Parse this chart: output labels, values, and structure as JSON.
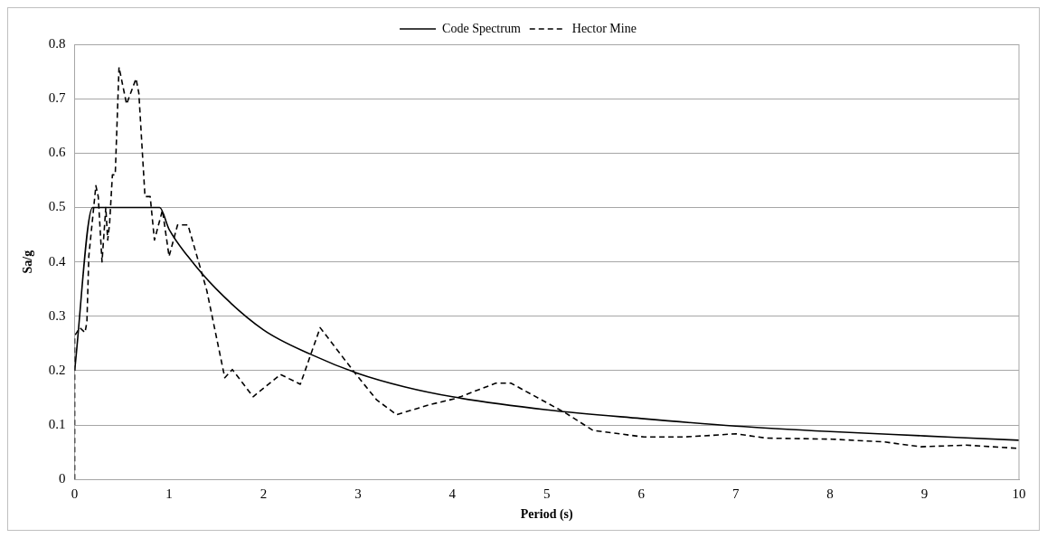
{
  "chart_data": {
    "type": "line",
    "xlabel": "Period (s)",
    "ylabel": "Sa/g",
    "xlim": [
      0,
      10
    ],
    "xticks": [
      0,
      1,
      2,
      3,
      4,
      5,
      6,
      7,
      8,
      9,
      10
    ],
    "ylim": [
      0,
      0.8
    ],
    "yticks": [
      0,
      0.1,
      0.2,
      0.3,
      0.4,
      0.5,
      0.6,
      0.7,
      0.8
    ],
    "grid": "y",
    "legend": "top",
    "marker": "none",
    "series": [
      {
        "name": "Code Spectrum",
        "color": "#000000",
        "line_style": "solid",
        "x": [
          0,
          0.19,
          0.9,
          1,
          1.2,
          1.5,
          2,
          2.5,
          3,
          3.5,
          4,
          5,
          6,
          7,
          8,
          9,
          10
        ],
        "values": [
          0.2,
          0.5,
          0.5,
          0.46,
          0.41,
          0.35,
          0.275,
          0.23,
          0.195,
          0.17,
          0.152,
          0.128,
          0.112,
          0.098,
          0.088,
          0.08,
          0.072
        ]
      },
      {
        "name": "Hector Mine",
        "color": "#000000",
        "line_style": "dashed",
        "x": [
          0,
          0,
          0.055,
          0.11,
          0.13,
          0.15,
          0.225,
          0.25,
          0.29,
          0.33,
          0.35,
          0.37,
          0.4,
          0.43,
          0.47,
          0.55,
          0.65,
          0.68,
          0.745,
          0.8,
          0.845,
          0.93,
          1,
          1.09,
          1.2,
          1.4,
          1.59,
          1.67,
          1.89,
          2.18,
          2.39,
          2.6,
          2.98,
          3.2,
          3.41,
          3.75,
          4.04,
          4.46,
          4.62,
          5.2,
          5.49,
          6.03,
          6.45,
          6.84,
          7,
          7.32,
          8.02,
          8.57,
          8.96,
          9.44,
          10
        ],
        "values": [
          0,
          0.264,
          0.279,
          0.27,
          0.29,
          0.41,
          0.54,
          0.52,
          0.4,
          0.5,
          0.44,
          0.47,
          0.56,
          0.56,
          0.758,
          0.69,
          0.737,
          0.71,
          0.52,
          0.52,
          0.44,
          0.495,
          0.41,
          0.468,
          0.468,
          0.347,
          0.187,
          0.202,
          0.152,
          0.193,
          0.175,
          0.279,
          0.193,
          0.146,
          0.119,
          0.137,
          0.149,
          0.177,
          0.177,
          0.122,
          0.09,
          0.078,
          0.078,
          0.082,
          0.084,
          0.076,
          0.074,
          0.069,
          0.06,
          0.063,
          0.057
        ]
      }
    ]
  }
}
